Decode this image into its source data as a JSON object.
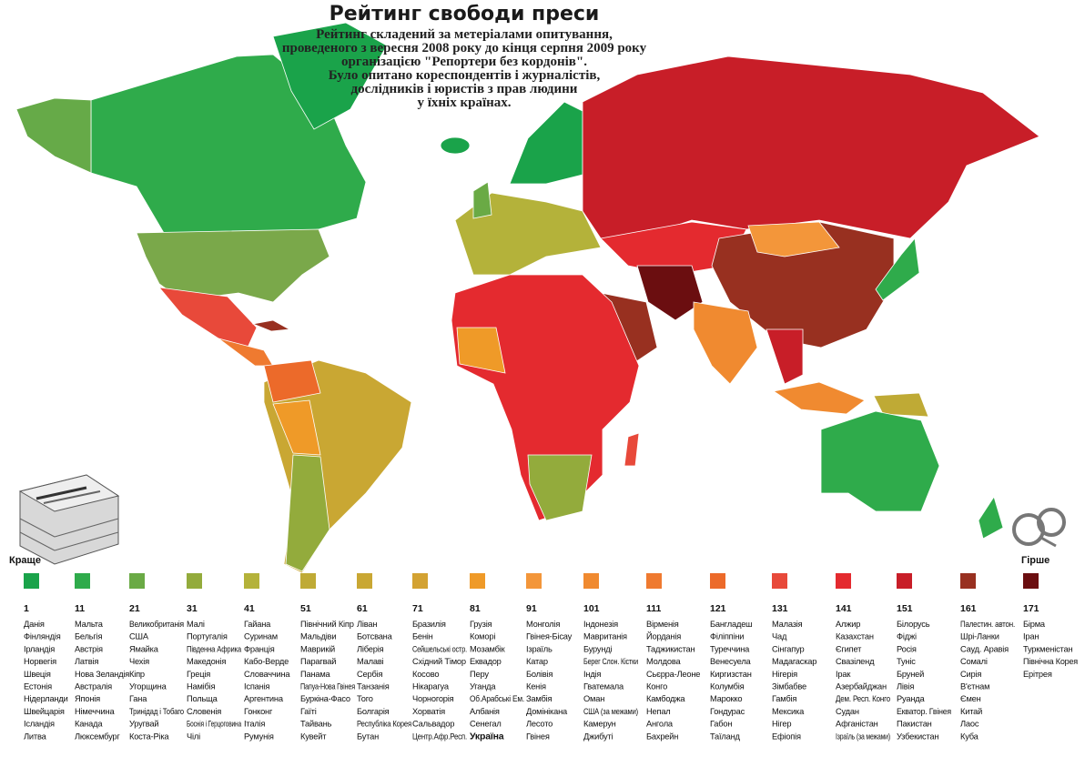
{
  "title": "Рейтинг свободи преси",
  "subtitle": [
    "Рейтинг складений за метеріалами опитування,",
    "проведеного з вересня 2008 року до кінця серпня 2009 року",
    "організацією \"Репортери без кордонів\".",
    "Було опитано кореспондентів і журналістів,",
    "дослідників і юристів з прав людини",
    "у їхніх країнах."
  ],
  "label_better": "Краще",
  "label_worse": "Гірше",
  "legend": [
    {
      "rank": "1",
      "color": "#1aa34a",
      "countries": [
        "Данія",
        "Фінляндія",
        "Ірландія",
        "Норвегія",
        "Швеція",
        "Естонія",
        "Нідерланди",
        "Швейцарія",
        "Ісландія",
        "Литва"
      ]
    },
    {
      "rank": "11",
      "color": "#2fab4b",
      "countries": [
        "Мальта",
        "Бельгія",
        "Австрія",
        "Латвія",
        "Нова Зеландія",
        "Австралія",
        "Японія",
        "Німеччина",
        "Канада",
        "Люксембург"
      ]
    },
    {
      "rank": "21",
      "color": "#6aaa45",
      "countries": [
        "Великобританія",
        "США",
        "Ямайка",
        "Чехія",
        "Кіпр",
        "Угорщина",
        "Гана",
        "Тринідад і Тобаго",
        "Уругвай",
        "Коста-Ріка"
      ]
    },
    {
      "rank": "31",
      "color": "#93ab3c",
      "countries": [
        "Малі",
        "Португалія",
        "Південна Африка",
        "Македонія",
        "Греція",
        "Намібія",
        "Польща",
        "Словенія",
        "Боснія і Герцоговина",
        "Чілі"
      ]
    },
    {
      "rank": "41",
      "color": "#b4b23a",
      "countries": [
        "Гайана",
        "Суринам",
        "Франція",
        "Кабо-Верде",
        "Словаччина",
        "Іспанія",
        "Аргентина",
        "Гонконг",
        "Італія",
        "Румунія"
      ]
    },
    {
      "rank": "51",
      "color": "#bfaa35",
      "countries": [
        "Північний Кіпр",
        "Мальдіви",
        "Маврикій",
        "Парагвай",
        "Панама",
        "Папуа-Нова Гвінея",
        "Буркіна-Фасо",
        "Гаїті",
        "Тайвань",
        "Кувейт"
      ]
    },
    {
      "rank": "61",
      "color": "#c9a733",
      "countries": [
        "Ліван",
        "Ботсвана",
        "Ліберія",
        "Малаві",
        "Сербія",
        "Танзанія",
        "Того",
        "Болгарія",
        "Республіка Корея",
        "Бутан"
      ]
    },
    {
      "rank": "71",
      "color": "#d3a232",
      "countries": [
        "Бразилія",
        "Бенін",
        "Сейшельські остр.",
        "Східний Тімор",
        "Косово",
        "Нікарагуа",
        "Чорногорія",
        "Хорватія",
        "Сальвадор",
        "Центр.Афр.Респ."
      ]
    },
    {
      "rank": "81",
      "color": "#ef9a28",
      "countries": [
        "Грузія",
        "Коморі",
        "Мозамбік",
        "Еквадор",
        "Перу",
        "Уганда",
        "Об.Арабські Ем.",
        "Албанія",
        "Сенегал",
        "Україна"
      ]
    },
    {
      "rank": "91",
      "color": "#f3963a",
      "countries": [
        "Монголія",
        "Гвінея-Бісау",
        "Ізраїль",
        "Катар",
        "Болівія",
        "Кенія",
        "Замбія",
        "Домінікана",
        "Лесото",
        "Гвінея"
      ]
    },
    {
      "rank": "101",
      "color": "#f08a30",
      "countries": [
        "Індонезія",
        "Мавританія",
        "Бурунді",
        "Берег Слон. Кістки",
        "Індія",
        "Гватемала",
        "Оман",
        "США (за межами)",
        "Камерун",
        "Джибуті"
      ]
    },
    {
      "rank": "111",
      "color": "#ef7a30",
      "countries": [
        "Вірменія",
        "Йорданія",
        "Таджикистан",
        "Молдова",
        "Сьєрра-Леоне",
        "Конго",
        "Камбоджа",
        "Непал",
        "Ангола",
        "Бахрейн"
      ]
    },
    {
      "rank": "121",
      "color": "#ec6a2a",
      "countries": [
        "Бангладеш",
        "Філіппіни",
        "Туреччина",
        "Венесуела",
        "Киргизстан",
        "Колумбія",
        "Марокко",
        "Гондурас",
        "Габон",
        "Таїланд"
      ]
    },
    {
      "rank": "131",
      "color": "#e8493a",
      "countries": [
        "Малазія",
        "Чад",
        "Сінгапур",
        "Мадагаскар",
        "Нігерія",
        "Зімбабве",
        "Гамбія",
        "Мексика",
        "Нігер",
        "Ефіопія"
      ]
    },
    {
      "rank": "141",
      "color": "#e42a2f",
      "countries": [
        "Алжир",
        "Казахстан",
        "Єгипет",
        "Свазіленд",
        "Ірак",
        "Азербайджан",
        "Дем. Респ. Конго",
        "Судан",
        "Афганістан",
        "Ізраїль (за межами)"
      ]
    },
    {
      "rank": "151",
      "color": "#c81e28",
      "countries": [
        "Білорусь",
        "Фіджі",
        "Росія",
        "Туніс",
        "Бруней",
        "Лівія",
        "Руанда",
        "Екватор. Гвінея",
        "Пакистан",
        "Узбекистан"
      ]
    },
    {
      "rank": "161",
      "color": "#983020",
      "countries": [
        "Палестин. автон.",
        "Шрі-Ланки",
        "Сауд. Аравія",
        "Сомалі",
        "Сирія",
        "В'єтнам",
        "Ємен",
        "Китай",
        "Лаос",
        "Куба"
      ]
    },
    {
      "rank": "171",
      "color": "#6b0e10",
      "countries": [
        "Бірма",
        "Іран",
        "Туркменістан",
        "Північна Корея",
        "Ерітрея"
      ]
    }
  ]
}
